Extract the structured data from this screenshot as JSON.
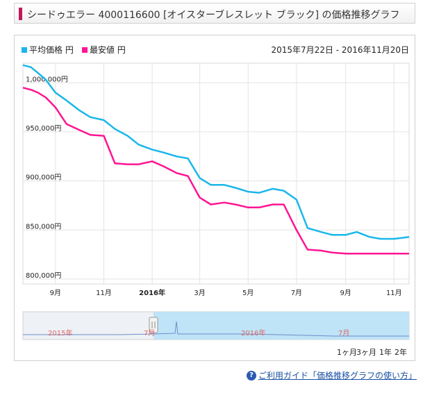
{
  "header": {
    "title": "シードゥエラー 4000116600 [オイスターブレスレット ブラック] の価格推移グラフ"
  },
  "legend": {
    "items": [
      {
        "label": "平均価格 円",
        "color": "#1ab7ea"
      },
      {
        "label": "最安値 円",
        "color": "#ff1493"
      }
    ],
    "date_range": "2015年7月22日 - 2016年11月20日"
  },
  "navigator": {
    "labels": [
      "2015年",
      "7月",
      "2016年",
      "7月"
    ]
  },
  "range_buttons": [
    "1ヶ月",
    "3ヶ月",
    "1年",
    "2年"
  ],
  "footer": {
    "help_link": "ご利用ガイド「価格推移グラフの使い方」"
  },
  "chart_data": {
    "type": "line",
    "title": "",
    "xlabel": "",
    "ylabel": "",
    "x_ticks": [
      "9月",
      "11月",
      "2016年",
      "3月",
      "5月",
      "7月",
      "9月",
      "11月"
    ],
    "y_ticks": [
      "800,000円",
      "850,000円",
      "900,000円",
      "950,000円",
      "1,000,000円"
    ],
    "xlim": [
      "2015-07-22",
      "2016-11-20"
    ],
    "ylim": [
      795000,
      1020000
    ],
    "grid": true,
    "legend_position": "top-left",
    "x": [
      "2015-07-22",
      "2015-08-01",
      "2015-08-10",
      "2015-08-20",
      "2015-09-01",
      "2015-09-15",
      "2015-10-01",
      "2015-10-15",
      "2015-11-01",
      "2015-11-15",
      "2015-12-01",
      "2015-12-15",
      "2016-01-01",
      "2016-01-15",
      "2016-02-01",
      "2016-02-15",
      "2016-03-01",
      "2016-03-15",
      "2016-04-01",
      "2016-04-15",
      "2016-05-01",
      "2016-05-15",
      "2016-06-01",
      "2016-06-15",
      "2016-07-01",
      "2016-07-15",
      "2016-08-01",
      "2016-08-15",
      "2016-09-01",
      "2016-09-15",
      "2016-10-01",
      "2016-10-15",
      "2016-11-01",
      "2016-11-20"
    ],
    "series": [
      {
        "name": "平均価格 円",
        "color": "#1ab7ea",
        "values": [
          1018000,
          1016000,
          1010000,
          1003000,
          990000,
          982000,
          972000,
          965000,
          962000,
          953000,
          946000,
          937000,
          932000,
          929000,
          925000,
          923000,
          903000,
          896000,
          896000,
          893000,
          889000,
          888000,
          892000,
          890000,
          881000,
          852000,
          848000,
          845000,
          845000,
          848000,
          843000,
          841000,
          841000,
          843000
        ]
      },
      {
        "name": "最安値 円",
        "color": "#ff1493",
        "values": [
          995000,
          993000,
          990000,
          985000,
          975000,
          958000,
          952000,
          947000,
          946000,
          918000,
          917000,
          917000,
          920000,
          915000,
          908000,
          905000,
          883000,
          876000,
          878000,
          876000,
          873000,
          873000,
          876000,
          876000,
          850000,
          830000,
          829000,
          827000,
          826000,
          826000,
          826000,
          826000,
          826000,
          826000
        ]
      }
    ]
  }
}
